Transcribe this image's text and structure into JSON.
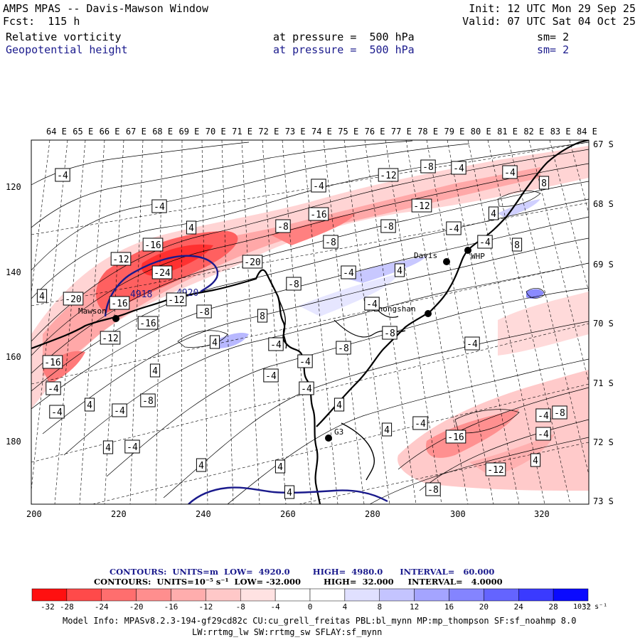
{
  "header": {
    "title": "AMPS MPAS -- Davis-Mawson Window",
    "init": "Init: 12 UTC Mon 29 Sep 25",
    "fcst": "Fcst:  115 h",
    "valid": "Valid: 07 UTC Sat 04 Oct 25",
    "field1": {
      "name": "Relative vorticity",
      "level": "at pressure =  500 hPa",
      "sm": "sm= 2"
    },
    "field2": {
      "name": "Geopotential height",
      "level": "at pressure =  500 hPa",
      "sm": "sm= 2"
    }
  },
  "map": {
    "top_lon_labels": [
      "64 E",
      "65 E",
      "66 E",
      "67 E",
      "68 E",
      "69 E",
      "70 E",
      "71 E",
      "72 E",
      "73 E",
      "74 E",
      "75 E",
      "76 E",
      "77 E",
      "78 E",
      "79 E",
      "80 E",
      "81 E",
      "82 E",
      "83 E",
      "84 E"
    ],
    "right_lat_labels": [
      "67 S",
      "68 S",
      "69 S",
      "70 S",
      "71 S",
      "72 S",
      "73 S"
    ],
    "left_y_labels": [
      "120",
      "140",
      "160",
      "180"
    ],
    "bottom_x_labels": [
      "200",
      "220",
      "240",
      "260",
      "280",
      "300",
      "320"
    ],
    "stations": [
      "Mawson",
      "Davis",
      "WHP",
      "Zhongshan",
      "G3"
    ],
    "height_labels": [
      "4918",
      "4920"
    ],
    "vort_labels": [
      {
        "t": "-4"
      },
      {
        "t": "-4"
      },
      {
        "t": "-12"
      },
      {
        "t": "-8"
      },
      {
        "t": "-4"
      },
      {
        "t": "-4"
      },
      {
        "t": "8"
      },
      {
        "t": "-12"
      },
      {
        "t": "-16"
      },
      {
        "t": "-4"
      },
      {
        "t": "4"
      },
      {
        "t": "-8"
      },
      {
        "t": "-8"
      },
      {
        "t": "4"
      },
      {
        "t": "-16"
      },
      {
        "t": "-4"
      },
      {
        "t": "-12"
      },
      {
        "t": "-20"
      },
      {
        "t": "-8"
      },
      {
        "t": "-4"
      },
      {
        "t": "8"
      },
      {
        "t": "-24"
      },
      {
        "t": "4"
      },
      {
        "t": "-20"
      },
      {
        "t": "-16"
      },
      {
        "t": "-12"
      },
      {
        "t": "-8"
      },
      {
        "t": "-8"
      },
      {
        "t": "4"
      },
      {
        "t": "-16"
      },
      {
        "t": "-12"
      },
      {
        "t": "8"
      },
      {
        "t": "4"
      },
      {
        "t": "-4"
      },
      {
        "t": "-8"
      },
      {
        "t": "-4"
      },
      {
        "t": "-16"
      },
      {
        "t": "-4"
      },
      {
        "t": "4"
      },
      {
        "t": "-4"
      },
      {
        "t": "-4"
      },
      {
        "t": "-4"
      },
      {
        "t": "4"
      },
      {
        "t": "-4"
      },
      {
        "t": "-8"
      },
      {
        "t": "-4"
      },
      {
        "t": "4"
      },
      {
        "t": "4"
      },
      {
        "t": "4"
      },
      {
        "t": "-4"
      },
      {
        "t": "-8"
      },
      {
        "t": "-16"
      },
      {
        "t": "-4"
      },
      {
        "t": "-4"
      },
      {
        "t": "-12"
      },
      {
        "t": "-4"
      },
      {
        "t": "4"
      },
      {
        "t": "4"
      },
      {
        "t": "-8"
      },
      {
        "t": "-8"
      },
      {
        "t": "4"
      },
      {
        "t": "4"
      },
      {
        "t": "-4"
      },
      {
        "t": "-4"
      }
    ]
  },
  "legend": {
    "contours1": "CONTOURS:  UNITS=m  LOW=  4920.0        HIGH=  4980.0      INTERVAL=   60.000",
    "contours2": "CONTOURS:  UNITS=10⁻⁵ s⁻¹  LOW= -32.000        HIGH=  32.000     INTERVAL=   4.0000",
    "ticks": [
      "-32",
      "-28",
      "-24",
      "-20",
      "-16",
      "-12",
      "-8",
      "-4",
      "0",
      "4",
      "8",
      "12",
      "16",
      "20",
      "24",
      "28",
      "32"
    ],
    "unit": "10⁻⁵ s⁻¹",
    "colors": [
      "#ff1010",
      "#ff4a4a",
      "#ff6e6e",
      "#ff8e8e",
      "#ffadad",
      "#ffc8c8",
      "#ffe2e2",
      "#ffffff",
      "#ffffff",
      "#e0e0ff",
      "#c4c4ff",
      "#a4a4ff",
      "#8484ff",
      "#6464ff",
      "#3a3aff",
      "#0a0aff"
    ]
  },
  "footer": {
    "line1": "Model Info: MPASv8.2.3-194-gf29cd82c CU:cu_grell_freitas PBL:bl_mynn MP:mp_thompson SF:sf_noahmp 8.0",
    "line2": "LW:rrtmg_lw SW:rrtmg_sw SFLAY:sf_mynn"
  }
}
